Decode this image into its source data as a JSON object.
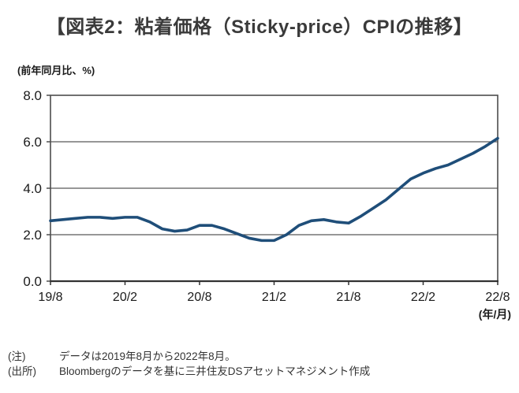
{
  "chart_data": {
    "type": "line",
    "title": "【図表2：粘着価格（Sticky-price）CPIの推移】",
    "unit_label": "(前年同月比、%)",
    "x_axis_label": "(年/月)",
    "ylim": [
      0,
      8
    ],
    "y_tick_values": [
      8,
      6,
      4,
      2,
      0
    ],
    "y_tick_labels": [
      "8.0",
      "6.0",
      "4.0",
      "2.0",
      "0.0"
    ],
    "x_tick_labels": [
      "19/8",
      "20/2",
      "20/8",
      "21/2",
      "21/8",
      "22/2",
      "22/8"
    ],
    "x_tick_indices": [
      0,
      6,
      12,
      18,
      24,
      30,
      36
    ],
    "grid": true,
    "legend": "none",
    "series_name": "粘着価格CPI(前年同月比)",
    "months": [
      "19/8",
      "19/9",
      "19/10",
      "19/11",
      "19/12",
      "20/1",
      "20/2",
      "20/3",
      "20/4",
      "20/5",
      "20/6",
      "20/7",
      "20/8",
      "20/9",
      "20/10",
      "20/11",
      "20/12",
      "21/1",
      "21/2",
      "21/3",
      "21/4",
      "21/5",
      "21/6",
      "21/7",
      "21/8",
      "21/9",
      "21/10",
      "21/11",
      "21/12",
      "22/1",
      "22/2",
      "22/3",
      "22/4",
      "22/5",
      "22/6",
      "22/7",
      "22/8"
    ],
    "values": [
      2.6,
      2.65,
      2.7,
      2.75,
      2.75,
      2.7,
      2.75,
      2.75,
      2.55,
      2.25,
      2.15,
      2.2,
      2.4,
      2.4,
      2.25,
      2.05,
      1.85,
      1.75,
      1.75,
      2.0,
      2.4,
      2.6,
      2.65,
      2.55,
      2.5,
      2.8,
      3.15,
      3.5,
      3.95,
      4.4,
      4.65,
      4.85,
      5.0,
      5.25,
      5.5,
      5.8,
      6.15
    ],
    "colors": {
      "line": "#1f4e79",
      "grid": "#595959",
      "border": "#4d4d4d",
      "axis": "#333333",
      "tick_label": "#1a1a1a"
    }
  },
  "notes": [
    {
      "label": "(注)",
      "text": "データは2019年8月から2022年8月。"
    },
    {
      "label": "(出所)",
      "text": "Bloombergのデータを基に三井住友DSアセットマネジメント作成"
    }
  ]
}
